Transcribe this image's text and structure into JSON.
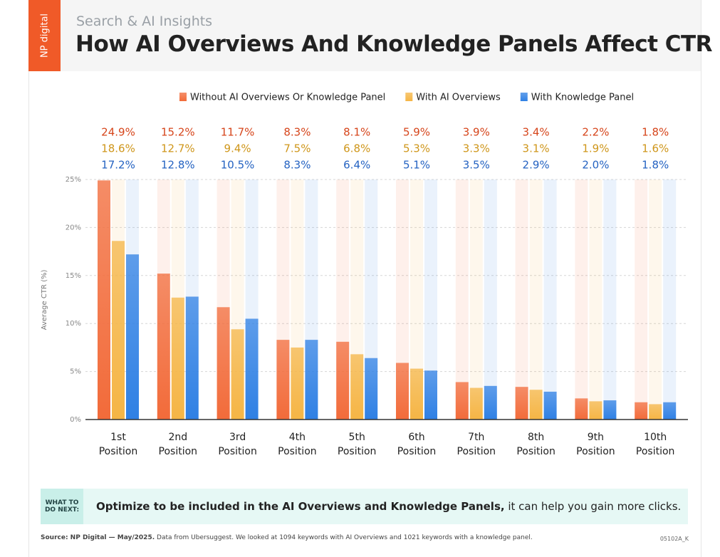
{
  "brand": "NP digital",
  "chart_data": {
    "type": "bar",
    "subtitle": "Search & AI Insights",
    "title": "How AI Overviews And Knowledge Panels Affect CTR",
    "y_label": "Average CTR (%)",
    "categories": [
      "1st Position",
      "2nd Position",
      "3rd Position",
      "4th Position",
      "5th Position",
      "6th Position",
      "7th Position",
      "8th Position",
      "9th Position",
      "10th Position"
    ],
    "series": [
      {
        "name": "Without AI Overviews Or Knowledge Panel",
        "color": "#f26b3a",
        "label_color": "#d6451b",
        "values": [
          24.9,
          15.2,
          11.7,
          8.3,
          8.1,
          5.9,
          3.9,
          3.4,
          2.2,
          1.8
        ],
        "value_labels": [
          "24.9%",
          "15.2%",
          "11.7%",
          "8.3%",
          "8.1%",
          "5.9%",
          "3.9%",
          "3.4%",
          "2.2%",
          "1.8%"
        ]
      },
      {
        "name": "With AI Overviews",
        "color": "#f5b545",
        "label_color": "#cf961a",
        "values": [
          18.6,
          12.7,
          9.4,
          7.5,
          6.8,
          5.3,
          3.3,
          3.1,
          1.9,
          1.6
        ],
        "value_labels": [
          "18.6%",
          "12.7%",
          "9.4%",
          "7.5%",
          "6.8%",
          "5.3%",
          "3.3%",
          "3.1%",
          "1.9%",
          "1.6%"
        ]
      },
      {
        "name": "With Knowledge Panel",
        "color": "#2f80e4",
        "label_color": "#2563c2",
        "values": [
          17.2,
          12.8,
          10.5,
          8.3,
          6.4,
          5.1,
          3.5,
          2.9,
          2.0,
          1.8
        ],
        "value_labels": [
          "17.2%",
          "12.8%",
          "10.5%",
          "8.3%",
          "6.4%",
          "5.1%",
          "3.5%",
          "2.9%",
          "2.0%",
          "1.8%"
        ]
      }
    ],
    "ylim": [
      0,
      25
    ],
    "yticks": [
      {
        "value": 0,
        "label": "0%"
      },
      {
        "value": 5,
        "label": "5%"
      },
      {
        "value": 10,
        "label": "10%"
      },
      {
        "value": 15,
        "label": "15%"
      },
      {
        "value": 20,
        "label": "20%"
      },
      {
        "value": 25,
        "label": "25%"
      }
    ],
    "grid": true
  },
  "callout": {
    "tag": "WHAT TO DO NEXT:",
    "bold": "Optimize to be included in the AI Overviews and Knowledge Panels,",
    "text": "it can help you gain more clicks."
  },
  "footer": {
    "source": "Source: NP Digital — May/2025.",
    "note": "Data from Ubersuggest. We looked at 1094 keywords with AI Overviews and 1021 keywords with a knowledge panel.",
    "code": "05102A_K"
  }
}
